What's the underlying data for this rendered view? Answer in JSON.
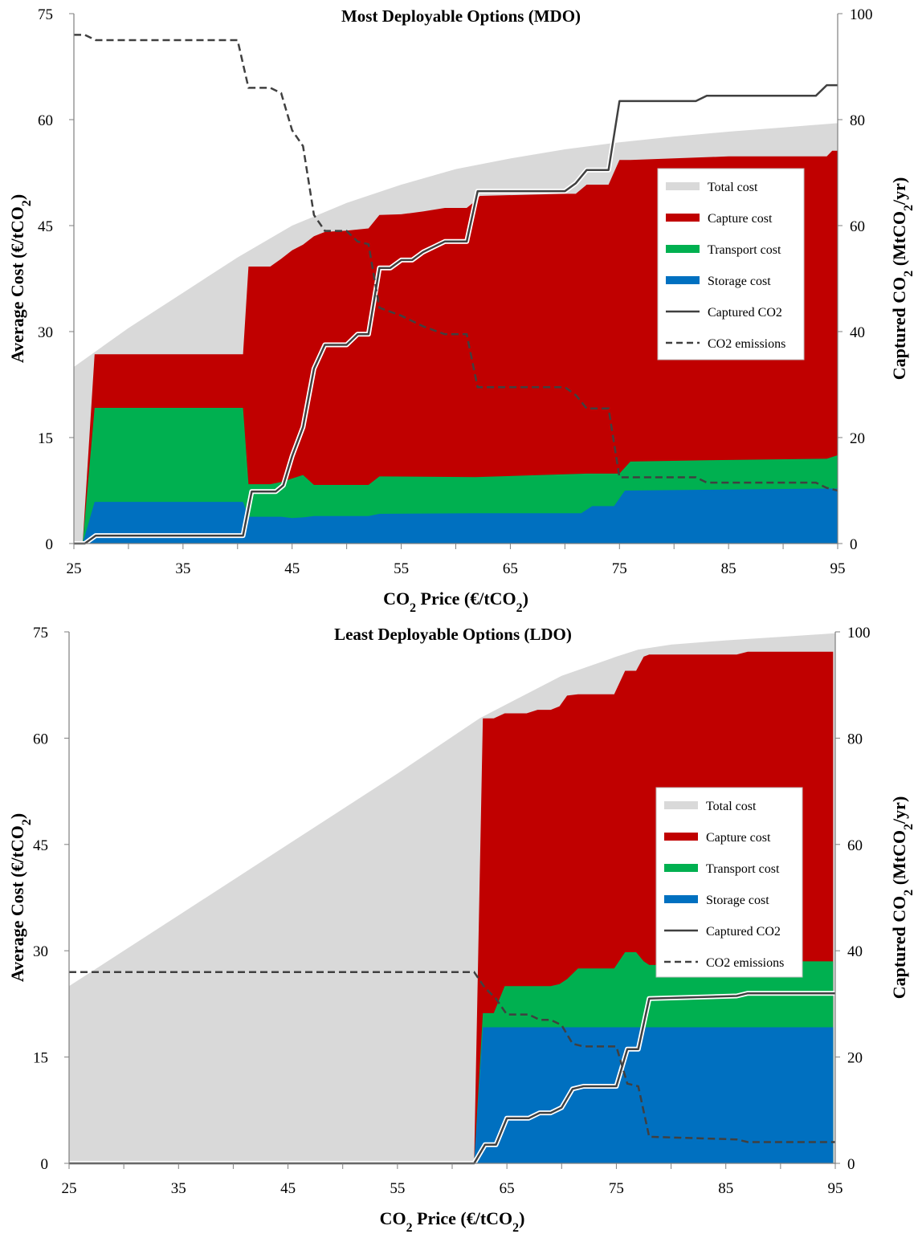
{
  "chart_data": [
    {
      "type": "area",
      "title": "Most Deployable Options (MDO)",
      "xlabel": "CO2 Price (€/tCO2)",
      "ylabel": "Average Cost (€/tCO2)",
      "y2label": "Captured CO2 (MtCO2/yr)",
      "xlim": [
        25,
        95
      ],
      "ylim": [
        0,
        75
      ],
      "y2lim": [
        0,
        100
      ],
      "x_ticks": [
        "25",
        "35",
        "45",
        "55",
        "65",
        "75",
        "85",
        "95"
      ],
      "y_ticks": [
        "0",
        "15",
        "30",
        "45",
        "60",
        "75"
      ],
      "y2_ticks": [
        "0",
        "20",
        "40",
        "60",
        "80",
        "100"
      ],
      "legend": [
        "Total cost",
        "Capture cost",
        "Transport cost",
        "Storage cost",
        "Captured CO2",
        "CO2 emissions"
      ],
      "legend_position": "center-right",
      "colors": {
        "total": "#d9d9d9",
        "capture": "#c00000",
        "transport": "#00b050",
        "storage": "#0070c0",
        "captured_line": "#404040",
        "emissions_line": "#404040"
      },
      "series": [
        {
          "name": "Total cost",
          "axis": "left",
          "x": [
            25,
            30,
            35,
            40,
            45,
            50,
            55,
            60,
            65,
            70,
            75,
            80,
            85,
            90,
            95
          ],
          "values": [
            25,
            30.5,
            35.5,
            40.5,
            45,
            48.2,
            50.8,
            53,
            54.5,
            55.8,
            56.8,
            57.6,
            58.3,
            58.9,
            59.5
          ]
        },
        {
          "name": "Capture cost",
          "axis": "left",
          "x": [
            25.8,
            26.9,
            27,
            40.5,
            41,
            43,
            44,
            45,
            46,
            47,
            48,
            50,
            52,
            53,
            55,
            57,
            59,
            61,
            61.8,
            62.2,
            70,
            71,
            72,
            74,
            75,
            76,
            85,
            94,
            94.5,
            95
          ],
          "values": [
            0,
            26.8,
            26.8,
            26.8,
            39.2,
            39.2,
            40.3,
            41.5,
            42.3,
            43.5,
            44.1,
            44.3,
            44.6,
            46.5,
            46.6,
            47,
            47.5,
            47.5,
            48.5,
            49.2,
            49.5,
            49.5,
            50.8,
            50.8,
            54.3,
            54.3,
            54.8,
            54.8,
            55.6,
            55.6
          ]
        },
        {
          "name": "Transport cost",
          "axis": "left",
          "x": [
            25.8,
            26.9,
            27,
            40.5,
            41,
            43,
            44,
            45,
            46,
            47,
            52,
            53,
            61.8,
            72,
            75,
            76,
            83,
            94,
            95
          ],
          "values": [
            0,
            19.2,
            19.2,
            19.2,
            8.4,
            8.4,
            8.7,
            9.2,
            9.7,
            8.3,
            8.3,
            9.5,
            9.4,
            9.9,
            9.9,
            11.6,
            11.8,
            12,
            12.5
          ]
        },
        {
          "name": "Storage cost",
          "axis": "left",
          "x": [
            25.8,
            26.9,
            27,
            40.5,
            41,
            44,
            45,
            46,
            47,
            52,
            53,
            61.8,
            71.5,
            72.5,
            74.5,
            75.5,
            95
          ],
          "values": [
            0,
            5.9,
            5.9,
            5.9,
            3.8,
            3.8,
            3.6,
            3.7,
            3.9,
            3.9,
            4.2,
            4.3,
            4.3,
            5.3,
            5.3,
            7.5,
            7.8
          ]
        },
        {
          "name": "Captured CO2",
          "axis": "right",
          "x": [
            25,
            26,
            27,
            40.5,
            41.3,
            43.5,
            44.2,
            45,
            46,
            47,
            48,
            50,
            51,
            52,
            53,
            54,
            55,
            56,
            57,
            58,
            59,
            60,
            61,
            62,
            63,
            70,
            71,
            72,
            74,
            75,
            76,
            82,
            83,
            84,
            93,
            94,
            95
          ],
          "values": [
            0,
            0,
            1.5,
            1.5,
            9.8,
            9.8,
            11,
            16.5,
            22,
            33,
            37.5,
            37.5,
            39.5,
            39.5,
            52,
            52,
            53.5,
            53.5,
            55,
            56,
            57,
            57,
            57,
            66.5,
            66.5,
            66.5,
            68,
            70.5,
            70.5,
            83.5,
            83.5,
            83.5,
            84.5,
            84.5,
            84.5,
            86.5,
            86.5
          ]
        },
        {
          "name": "CO2 emissions",
          "axis": "right",
          "x": [
            25,
            26,
            27,
            40,
            41,
            43,
            44,
            45,
            46,
            47,
            48,
            50,
            51,
            52,
            53,
            55,
            57,
            59,
            61,
            62,
            70,
            71,
            72,
            74,
            75,
            76,
            82,
            83,
            93,
            94,
            95
          ],
          "values": [
            96,
            96,
            95,
            95,
            86,
            86,
            85,
            78,
            75,
            62,
            59,
            59,
            57,
            56.5,
            44.5,
            43,
            41,
            39.5,
            39.5,
            29.5,
            29.5,
            28,
            25.5,
            25.5,
            12.5,
            12.5,
            12.5,
            11.5,
            11.5,
            10.5,
            10
          ]
        }
      ]
    },
    {
      "type": "area",
      "title": "Least Deployable Options (LDO)",
      "xlabel": "CO2 Price (€/tCO2)",
      "ylabel": "Average Cost (€/tCO2)",
      "y2label": "Captured CO2 (MtCO2/yr)",
      "xlim": [
        25,
        95
      ],
      "ylim": [
        0,
        75
      ],
      "y2lim": [
        0,
        100
      ],
      "x_ticks": [
        "25",
        "35",
        "45",
        "55",
        "65",
        "75",
        "85",
        "95"
      ],
      "y_ticks": [
        "0",
        "15",
        "30",
        "45",
        "60",
        "75"
      ],
      "y2_ticks": [
        "0",
        "20",
        "40",
        "60",
        "80",
        "100"
      ],
      "legend": [
        "Total cost",
        "Capture cost",
        "Transport cost",
        "Storage cost",
        "Captured CO2",
        "CO2 emissions"
      ],
      "legend_position": "center-right",
      "colors": {
        "total": "#d9d9d9",
        "capture": "#c00000",
        "transport": "#00b050",
        "storage": "#0070c0",
        "captured_line": "#404040",
        "emissions_line": "#404040"
      },
      "series": [
        {
          "name": "Total cost",
          "axis": "left",
          "x": [
            25,
            35,
            45,
            55,
            62.5,
            65,
            70,
            75,
            77,
            80,
            85,
            90,
            95
          ],
          "values": [
            25,
            35,
            45,
            55,
            62.8,
            64.8,
            68.8,
            71.5,
            72.5,
            73.2,
            73.8,
            74.3,
            74.8
          ]
        },
        {
          "name": "Capture cost",
          "axis": "left",
          "x": [
            62,
            62.8,
            63.8,
            64.8,
            66.8,
            67.8,
            69,
            69.8,
            70.5,
            71.5,
            74.8,
            75.8,
            76.8,
            77.5,
            78,
            86,
            87,
            94.8
          ],
          "values": [
            0,
            62.8,
            62.8,
            63.5,
            63.5,
            64,
            64,
            64.5,
            66,
            66.2,
            66.2,
            69.5,
            69.5,
            71.5,
            71.8,
            71.8,
            72.2,
            72.2
          ]
        },
        {
          "name": "Transport cost",
          "axis": "left",
          "x": [
            62,
            62.8,
            63.8,
            64.8,
            69,
            69.8,
            70.5,
            71.5,
            72.5,
            74.8,
            75.8,
            76.8,
            77.5,
            78,
            86,
            87,
            94.8
          ],
          "values": [
            0,
            21.2,
            21.2,
            25,
            25,
            25.3,
            26,
            27.5,
            27.5,
            27.5,
            29.8,
            29.8,
            28.5,
            28,
            28,
            28.5,
            28.5
          ]
        },
        {
          "name": "Storage cost",
          "axis": "left",
          "x": [
            62,
            62.8,
            94.8
          ],
          "values": [
            0,
            19.2,
            19.2
          ]
        },
        {
          "name": "Captured CO2",
          "axis": "right",
          "x": [
            25,
            62,
            63,
            64,
            65,
            67,
            68,
            69,
            70,
            71,
            72,
            75,
            76,
            77,
            78,
            86,
            87,
            95
          ],
          "values": [
            0,
            0,
            3.5,
            3.5,
            8.5,
            8.5,
            9.5,
            9.5,
            10.5,
            14,
            14.5,
            14.5,
            21.5,
            21.5,
            31,
            31.5,
            32,
            32
          ]
        },
        {
          "name": "CO2 emissions",
          "axis": "right",
          "x": [
            25,
            62,
            63,
            64,
            65,
            67,
            68,
            69,
            70,
            71,
            72,
            75,
            76,
            77,
            78,
            86,
            87,
            95
          ],
          "values": [
            36,
            36,
            33,
            31,
            28,
            28,
            27,
            27,
            26,
            22.5,
            22,
            22,
            15,
            14.5,
            5,
            4.5,
            4,
            4
          ]
        }
      ]
    }
  ]
}
